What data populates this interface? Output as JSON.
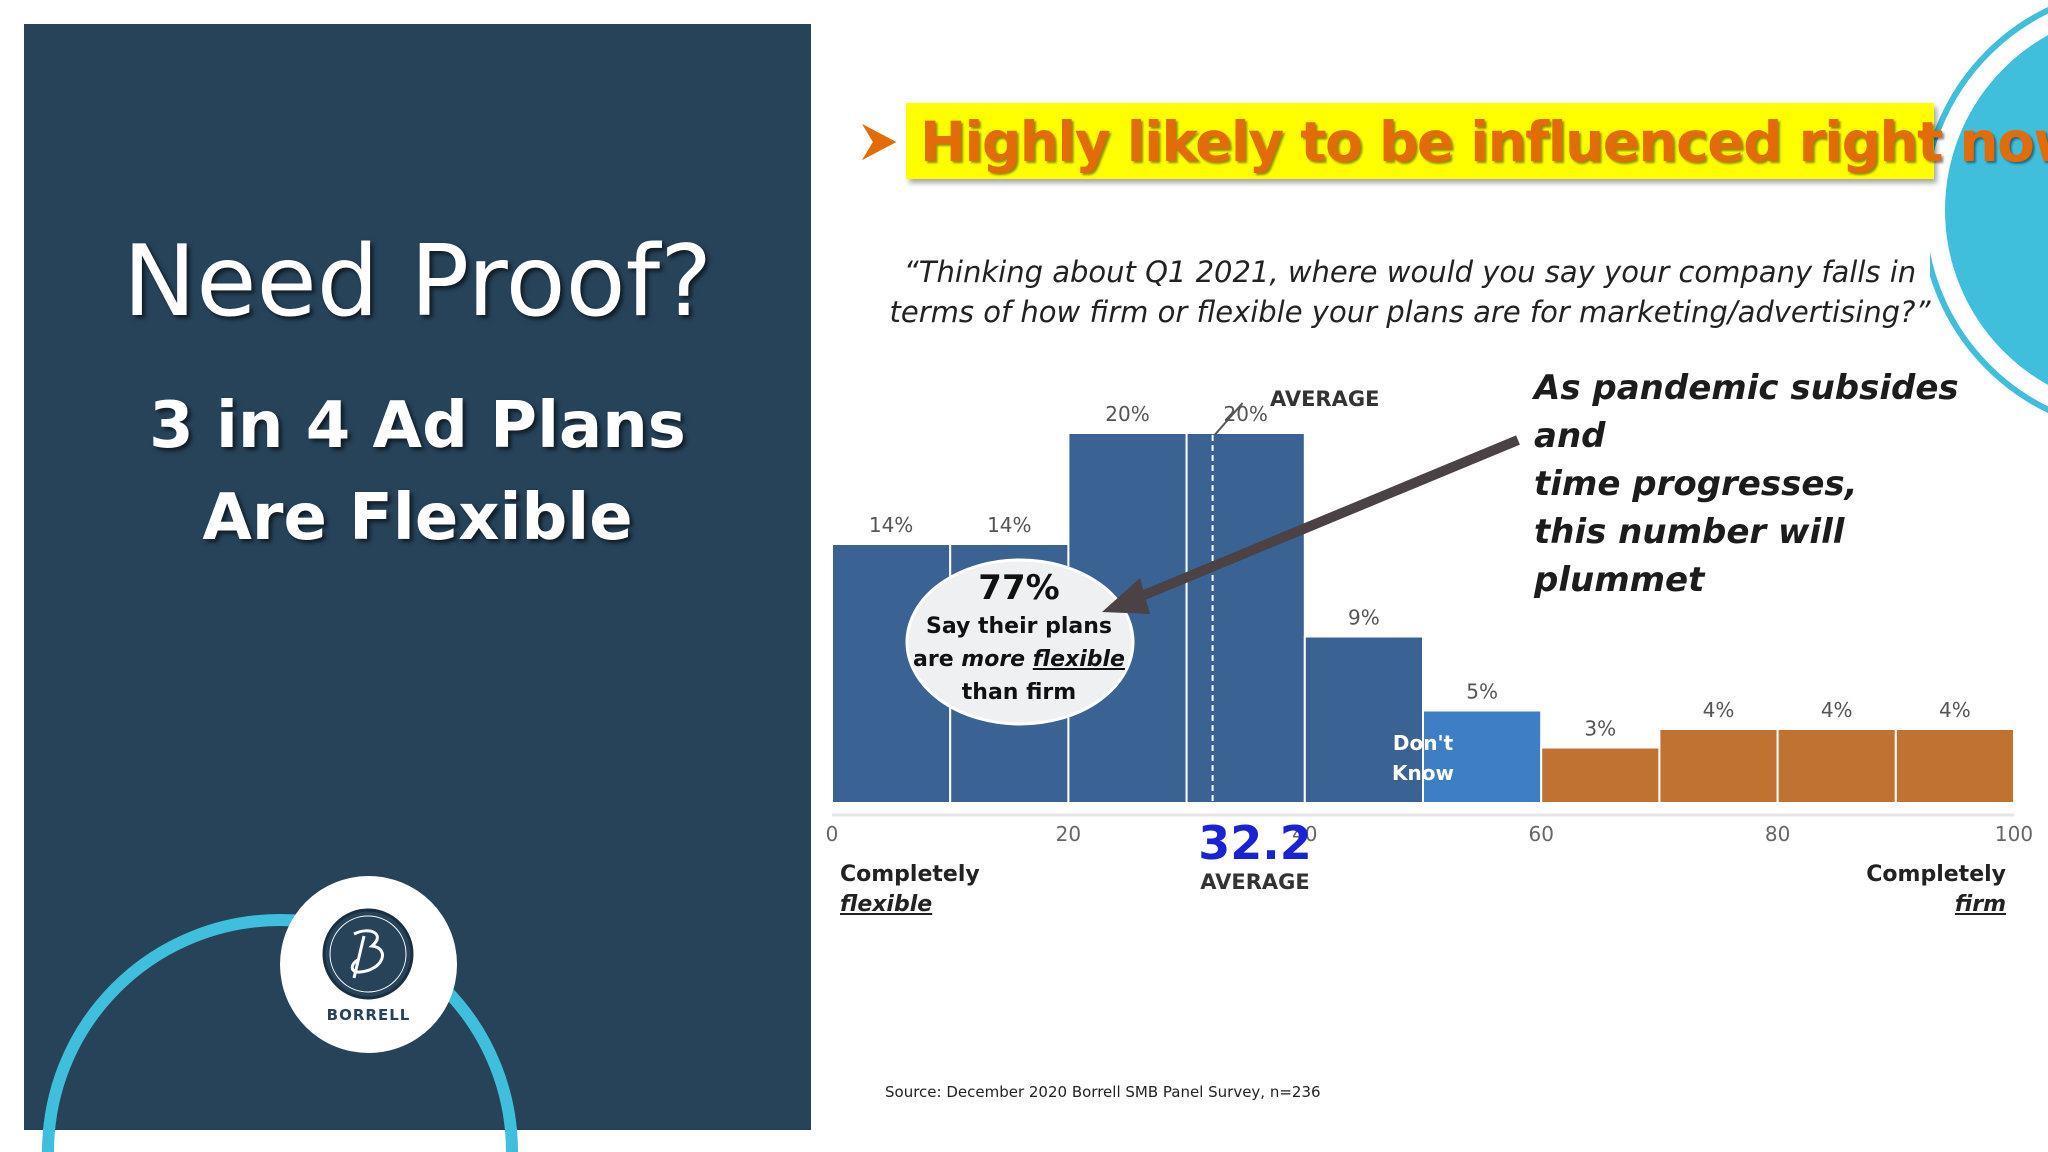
{
  "left_panel": {
    "title": "Need Proof?",
    "subtitle_line1": "3 in 4 Ad Plans",
    "subtitle_line2": "Are Flexible",
    "logo_text": "BORRELL"
  },
  "headline": "Highly likely to be influenced right now",
  "question_line1": "“Thinking about Q1 2021, where would you say your company falls in",
  "question_line2": "terms of how firm or flexible your plans are for marketing/advertising?”",
  "callout": {
    "line1": "As pandemic subsides and",
    "line2": "time progresses,",
    "line3": "this number will plummet"
  },
  "source": "Source: December 2020 Borrell SMB Panel Survey, n=236",
  "colors": {
    "panel": "#27435a",
    "accent_cyan": "#3fbfdc",
    "headline_bg": "#ffff00",
    "headline_text": "#e36c09",
    "bar_blue": "#3a6394",
    "dont_know": "#3d7ec4",
    "bar_orange": "#c07232",
    "average_blue": "#1a22d6"
  },
  "chart_data": {
    "type": "bar",
    "x_ticks": [
      "0",
      "20",
      "40",
      "60",
      "80",
      "100"
    ],
    "xlim": [
      0,
      100
    ],
    "bars": [
      {
        "x_start": 0,
        "x_end": 10,
        "value": 14,
        "label": "14%",
        "group": "flexible"
      },
      {
        "x_start": 10,
        "x_end": 20,
        "value": 14,
        "label": "14%",
        "group": "flexible"
      },
      {
        "x_start": 20,
        "x_end": 30,
        "value": 20,
        "label": "20%",
        "group": "flexible"
      },
      {
        "x_start": 30,
        "x_end": 40,
        "value": 20,
        "label": "20%",
        "group": "flexible"
      },
      {
        "x_start": 40,
        "x_end": 50,
        "value": 9,
        "label": "9%",
        "group": "flexible"
      },
      {
        "x_start": 50,
        "x_end": 60,
        "value": 5,
        "label": "5%",
        "group": "dont_know"
      },
      {
        "x_start": 60,
        "x_end": 70,
        "value": 3,
        "label": "3%",
        "group": "firm"
      },
      {
        "x_start": 70,
        "x_end": 80,
        "value": 4,
        "label": "4%",
        "group": "firm"
      },
      {
        "x_start": 80,
        "x_end": 90,
        "value": 4,
        "label": "4%",
        "group": "firm"
      },
      {
        "x_start": 90,
        "x_end": 100,
        "value": 4,
        "label": "4%",
        "group": "firm"
      }
    ],
    "dont_know_line1": "Don't",
    "dont_know_line2": "Know",
    "average": {
      "value": 32.2,
      "display": "32.2",
      "label": "AVERAGE"
    },
    "left_end_line1": "Completely",
    "left_end_line2": "flexible",
    "right_end_line1": "Completely",
    "right_end_line2": "firm",
    "oval": {
      "pct": "77%",
      "line1": "Say their plans",
      "line2_prefix": "are ",
      "line2_more": "more",
      "line2_flexible": "flexible",
      "line3": "than firm"
    }
  }
}
